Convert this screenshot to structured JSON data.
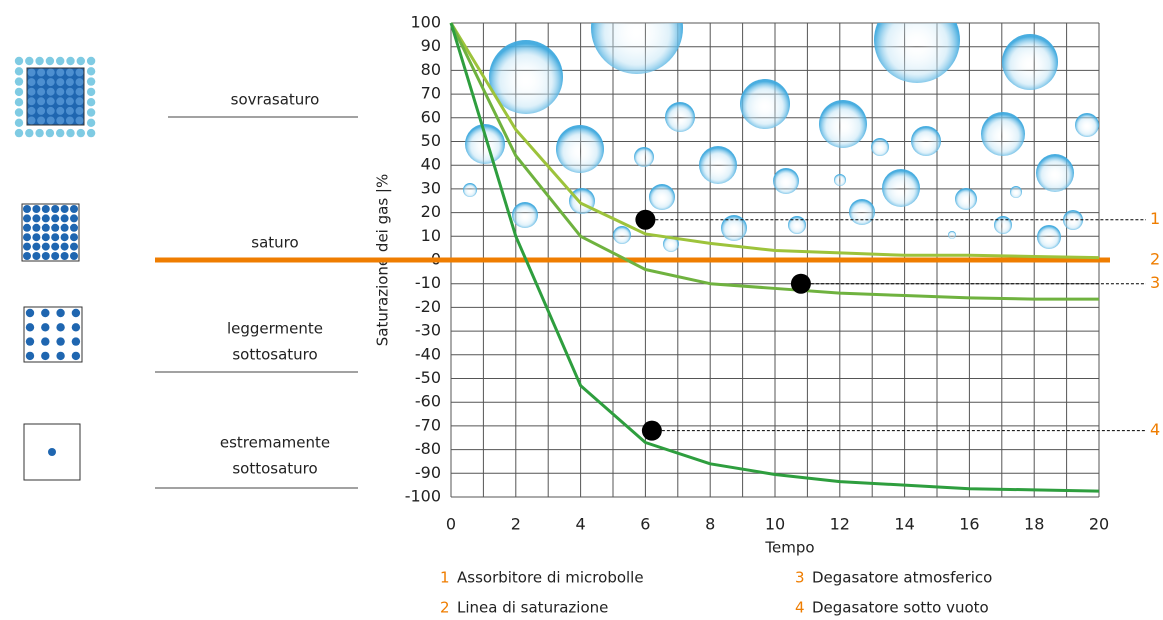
{
  "chart_data": {
    "type": "line",
    "y_label": "Saturazione dei gas |%",
    "x_label": "Tempo",
    "x": [
      0,
      2,
      4,
      6,
      8,
      10,
      12,
      14,
      16,
      18,
      20
    ],
    "xlim": [
      0,
      20
    ],
    "xticks": [
      0,
      2,
      4,
      6,
      8,
      10,
      12,
      14,
      16,
      18,
      20
    ],
    "xminorticks": [
      1,
      3,
      5,
      7,
      9,
      11,
      13,
      15,
      17,
      19
    ],
    "ylim": [
      -100,
      100
    ],
    "yticks": [
      -100,
      -90,
      -80,
      -70,
      -60,
      -50,
      -40,
      -30,
      -20,
      -10,
      0,
      10,
      20,
      30,
      40,
      50,
      60,
      70,
      80,
      90,
      100
    ],
    "grid": true,
    "series": [
      {
        "marker": "1",
        "name": "Assorbitore di microbolle",
        "color": "#9dc33b",
        "values": [
          100,
          55,
          24,
          11,
          7,
          4,
          3,
          2,
          2,
          1.5,
          1
        ],
        "points": [
          {
            "x": 6,
            "y": 17
          }
        ]
      },
      {
        "marker": "2",
        "name": "Linea di saturazione",
        "color": "#ef7d00",
        "values": [
          0,
          0,
          0,
          0,
          0,
          0,
          0,
          0,
          0,
          0,
          0
        ]
      },
      {
        "marker": "3",
        "name": "Degasatore atmosferico",
        "color": "#6fb23f",
        "values": [
          100,
          44,
          10,
          -4,
          -10,
          -12,
          -14,
          -15,
          -16,
          -16.5,
          -16.5
        ],
        "points": [
          {
            "x": 10.8,
            "y": -10
          }
        ]
      },
      {
        "marker": "4",
        "name": "Degasatore sotto vuoto",
        "color": "#2e9e3e",
        "values": [
          100,
          10,
          -53,
          -77,
          -86,
          -90.5,
          -93.5,
          -95,
          -96.5,
          -97,
          -97.5
        ],
        "points": [
          {
            "x": 6.2,
            "y": -72
          }
        ]
      }
    ],
    "states": [
      {
        "lines": [
          "sovrasaturo"
        ]
      },
      {
        "lines": [
          "saturo"
        ]
      },
      {
        "lines": [
          "leggermente",
          "sottosaturo"
        ]
      },
      {
        "lines": [
          "estremamente",
          "sottosaturo"
        ]
      }
    ]
  }
}
